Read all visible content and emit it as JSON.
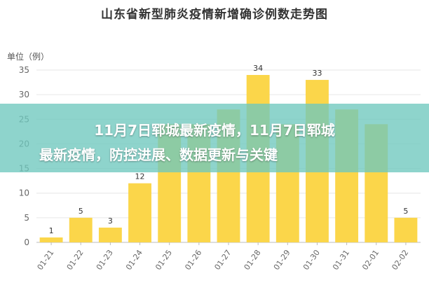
{
  "chart_data": {
    "type": "bar",
    "title": "山东省新型肺炎疫情新增确诊例数走势图",
    "ylabel": "单位（例）",
    "xlabel": "",
    "categories": [
      "01-21",
      "01-22",
      "01-23",
      "01-24",
      "01-25",
      "01-26",
      "01-27",
      "01-28",
      "01-29",
      "01-30",
      "01-31",
      "02-01",
      "02-02"
    ],
    "values": [
      1,
      5,
      3,
      12,
      24,
      24,
      27,
      34,
      24,
      33,
      27,
      24,
      5
    ],
    "data_labels": {
      "0": "1",
      "1": "5",
      "2": "3",
      "3": "12",
      "7": "34",
      "9": "33",
      "12": "5"
    },
    "yticks": [
      0,
      5,
      10,
      15,
      20,
      25,
      30,
      35
    ],
    "ylim": [
      0,
      35
    ],
    "grid": true,
    "bar_color": "#fbd64a",
    "grid_color": "#e6e6e6"
  },
  "overlay": {
    "line1": "11月7日郓城最新疫情，11月7日郓城",
    "line2": "最新疫情，防控进展、数据更新与关键"
  }
}
